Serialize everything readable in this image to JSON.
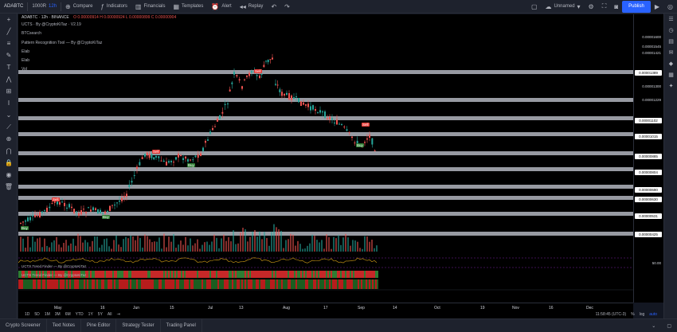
{
  "topbar": {
    "symbol": "ADABTC",
    "interval": "1000R",
    "chart_type": "12h",
    "compare": "Compare",
    "indicators": "Indicators",
    "financials": "Financials",
    "templates": "Templates",
    "alert": "Alert",
    "replay": "Replay",
    "unnamed": "Unnamed",
    "publish": "Publish"
  },
  "legend": {
    "main": "ADABTC · 12h · BINANCE",
    "ohlc": "O 0.00000914  H 0.00000924  L 0.00000899  C 0.00000904",
    "ind1": "UCTS · By @CryptoKiTaz · V2.19",
    "ind2": "BTCsearch",
    "ind3": "Pattern Recognition Tool — By @CryptoKiTaz",
    "ind4": "Elab",
    "ind5": "Elab",
    "vol": "Vol"
  },
  "price_axis": {
    "labels": [
      "0.00001600",
      "0.00001545",
      "0.00001421",
      "0.00001389",
      "0.00001300",
      "0.00001229",
      "0.00001102",
      "0.00001015",
      "0.00000885",
      "0.00000804",
      "0.00000690",
      "0.00000630",
      "0.00000531",
      "0.00000425"
    ],
    "rsi_label": "50.00"
  },
  "time_axis": {
    "labels": [
      "May",
      "16",
      "Jun",
      "15",
      "Jul",
      "13",
      "Aug",
      "17",
      "Sep",
      "14",
      "Oct",
      "19",
      "Nov",
      "16",
      "Dec"
    ]
  },
  "signals": [
    {
      "type": "sell",
      "label": "Sell"
    },
    {
      "type": "buy",
      "label": "Buy"
    },
    {
      "type": "sell",
      "label": "Sell"
    },
    {
      "type": "buy",
      "label": "Buy"
    },
    {
      "type": "sell",
      "label": "Sell"
    },
    {
      "type": "buy",
      "label": "Buy"
    },
    {
      "type": "sell",
      "label": "Sell"
    },
    {
      "type": "buy",
      "label": "Buy"
    }
  ],
  "subpanels": {
    "trend1": "UCTS Trend Finder — By @CryptoKiTaz",
    "trend2": "UCTS Trend Finder — By @CryptoKiTaz"
  },
  "range_bar": {
    "ranges": [
      "1D",
      "5D",
      "1M",
      "3M",
      "6M",
      "YTD",
      "1Y",
      "5Y",
      "All"
    ],
    "time": "11:58:45 (UTC-3)",
    "pct": "%",
    "log": "log",
    "auto": "auto"
  },
  "bottom_tabs": [
    "Crypto Screener",
    "Text Notes",
    "Pine Editor",
    "Strategy Tester",
    "Trading Panel"
  ],
  "colors": {
    "up": "#26a69a",
    "down": "#ef5350",
    "accent": "#2962ff",
    "support_band": "#b2b5be"
  }
}
